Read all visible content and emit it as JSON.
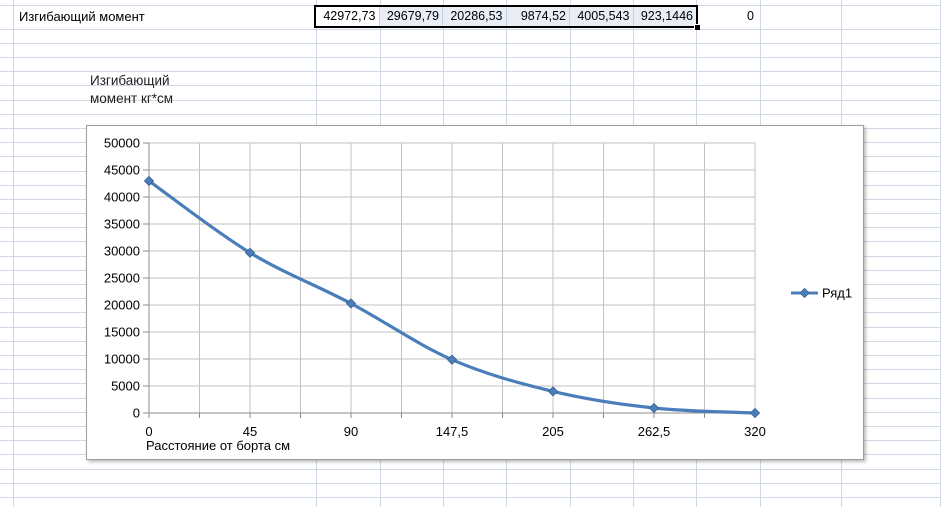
{
  "sheet": {
    "row_label": "Изгибающий момент",
    "selected_values": [
      "42972,73",
      "29679,79",
      "20286,53",
      "9874,52",
      "4005,543",
      "923,1446"
    ],
    "trailing_value": "0"
  },
  "chart_data": {
    "type": "line",
    "title": "Изгибающий момент кг*см",
    "categories": [
      "0",
      "45",
      "90",
      "147,5",
      "205",
      "262,5",
      "320"
    ],
    "series": [
      {
        "name": "Ряд1",
        "values": [
          42972.73,
          29679.79,
          20286.53,
          9874.52,
          4005.543,
          923.1446,
          0
        ]
      }
    ],
    "xlabel": "Расстояние от борта см",
    "ylabel": "",
    "ylim": [
      0,
      50000
    ],
    "ytick_step": 5000,
    "grid": true,
    "legend_position": "right",
    "marker": "diamond",
    "smooth": true,
    "colors": {
      "series": "#4a7ebb",
      "marker_edge": "#39618f",
      "plot_gridline": "#c2c2c2",
      "axis": "#8c8c8c"
    }
  },
  "theme": {
    "sheet_gridline": "#d0d7e5",
    "selection_fill": "#e9eef6",
    "active_cell_fill": "#ffffff",
    "selection_border": "#000000",
    "chart_border": "#9e9e9e",
    "text": "#000000"
  }
}
